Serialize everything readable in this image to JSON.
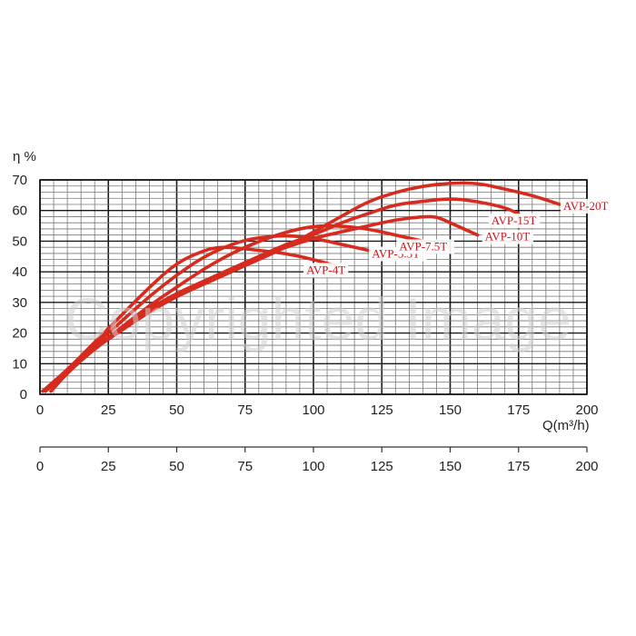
{
  "watermark": {
    "text": "Copyrighted Image"
  },
  "chart_data": {
    "type": "line",
    "ylabel": "η %",
    "xlabel": "Q(m³/h)",
    "xlim": [
      0,
      200
    ],
    "ylim": [
      0,
      70
    ],
    "x_ticks": [
      "0",
      "25",
      "50",
      "75",
      "100",
      "125",
      "150",
      "175",
      "200"
    ],
    "y_ticks": [
      "0",
      "10",
      "20",
      "30",
      "40",
      "50",
      "60",
      "70"
    ],
    "secondary_x_ticks": [
      "0",
      "25",
      "50",
      "75",
      "100",
      "125",
      "150",
      "175",
      "200"
    ],
    "grid": true,
    "colors": {
      "series": "#d62b1e",
      "label": "#c8151b",
      "grid": "#777777",
      "major_grid": "#1a1a1a"
    },
    "series": [
      {
        "name": "AVP-4T",
        "x": [
          1,
          10,
          20,
          30,
          40,
          50,
          60,
          65,
          70,
          80,
          90,
          100,
          108
        ],
        "y": [
          1,
          8,
          17,
          26,
          35,
          43,
          47,
          48,
          48,
          47,
          46,
          44,
          42
        ]
      },
      {
        "name": "AVP-5.5T",
        "x": [
          1,
          10,
          20,
          30,
          40,
          50,
          60,
          70,
          78,
          90,
          100,
          110,
          120
        ],
        "y": [
          1,
          8,
          16,
          24,
          32,
          39,
          45,
          49,
          51,
          52,
          51,
          49,
          47
        ]
      },
      {
        "name": "AVP-7.5T",
        "x": [
          2,
          10,
          20,
          30,
          40,
          50,
          60,
          70,
          80,
          90,
          100,
          110,
          120,
          130,
          140
        ],
        "y": [
          1,
          8,
          15,
          22,
          29,
          35,
          41,
          46,
          50,
          53,
          55,
          55,
          54,
          52,
          50
        ]
      },
      {
        "name": "AVP-10T",
        "x": [
          2,
          10,
          20,
          30,
          40,
          50,
          60,
          70,
          80,
          90,
          100,
          110,
          120,
          130,
          140,
          145,
          150,
          160
        ],
        "y": [
          1,
          7,
          15,
          21,
          27,
          32,
          37,
          41,
          45,
          48,
          51,
          53,
          55,
          57,
          58,
          58,
          56,
          52
        ]
      },
      {
        "name": "AVP-15T",
        "x": [
          4,
          10,
          20,
          30,
          40,
          50,
          60,
          70,
          80,
          90,
          100,
          110,
          120,
          130,
          140,
          150,
          160,
          170,
          175
        ],
        "y": [
          1,
          7,
          15,
          22,
          28,
          33,
          37,
          41,
          45,
          49,
          52,
          56,
          59,
          62,
          63,
          64,
          63,
          61,
          59
        ]
      },
      {
        "name": "AVP-20T",
        "x": [
          5,
          10,
          20,
          30,
          40,
          50,
          60,
          70,
          80,
          90,
          100,
          110,
          120,
          130,
          140,
          150,
          160,
          170,
          180,
          190
        ],
        "y": [
          2,
          7,
          15,
          21,
          27,
          32,
          36,
          40,
          44,
          48,
          53,
          58,
          63,
          66,
          68,
          69,
          69,
          67,
          65,
          62
        ]
      }
    ]
  }
}
